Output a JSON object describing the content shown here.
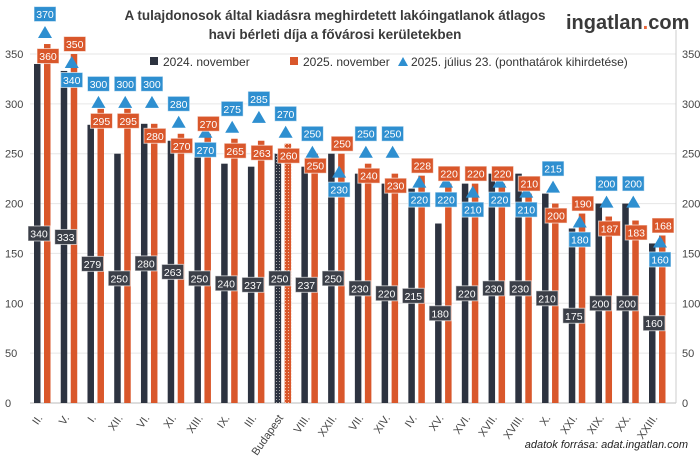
{
  "chart_data": {
    "type": "bar",
    "title": "A tulajdonosok által kiadásra meghirdetett lakóingatlanok átlagos havi bérleti díja a fővárosi kerületekben",
    "xlabel": "",
    "ylabel": "",
    "ylim": [
      0,
      370
    ],
    "yticks": [
      0,
      50,
      100,
      150,
      200,
      250,
      300,
      350
    ],
    "grid": true,
    "legend_position": "top",
    "categories": [
      "II.",
      "V.",
      "I.",
      "XII.",
      "VI.",
      "XI.",
      "XIII.",
      "IX.",
      "III.",
      "Budapest",
      "VIII.",
      "XXII.",
      "VII.",
      "XIV.",
      "IV.",
      "XV.",
      "XVI.",
      "XVII.",
      "XVIII.",
      "X.",
      "XXI.",
      "XIX.",
      "XX.",
      "XXIII."
    ],
    "series": [
      {
        "name": "2024. november",
        "type": "bar",
        "color": "#2d3340",
        "values": [
          340,
          333,
          279,
          250,
          280,
          263,
          250,
          240,
          237,
          250,
          237,
          250,
          230,
          220,
          215,
          180,
          220,
          230,
          230,
          210,
          175,
          200,
          200,
          160
        ]
      },
      {
        "name": "2025. november",
        "type": "bar",
        "color": "#d9572b",
        "values": [
          360,
          350,
          295,
          295,
          280,
          270,
          270,
          265,
          263,
          260,
          250,
          250,
          240,
          230,
          228,
          220,
          220,
          220,
          210,
          200,
          190,
          187,
          183,
          168
        ]
      },
      {
        "name": "2025. július 23. (ponthatárok kihirdetése)",
        "type": "scatter",
        "marker": "triangle",
        "color": "#2e8fd0",
        "values": [
          370,
          340,
          300,
          300,
          300,
          280,
          270,
          275,
          285,
          270,
          250,
          230,
          250,
          250,
          220,
          220,
          210,
          220,
          210,
          215,
          180,
          200,
          200,
          160
        ]
      }
    ]
  },
  "logo": {
    "text": "ingatlan",
    "dot": ".",
    "suffix": "com"
  },
  "source": "adatok forrása: adat.ingatlan.com"
}
